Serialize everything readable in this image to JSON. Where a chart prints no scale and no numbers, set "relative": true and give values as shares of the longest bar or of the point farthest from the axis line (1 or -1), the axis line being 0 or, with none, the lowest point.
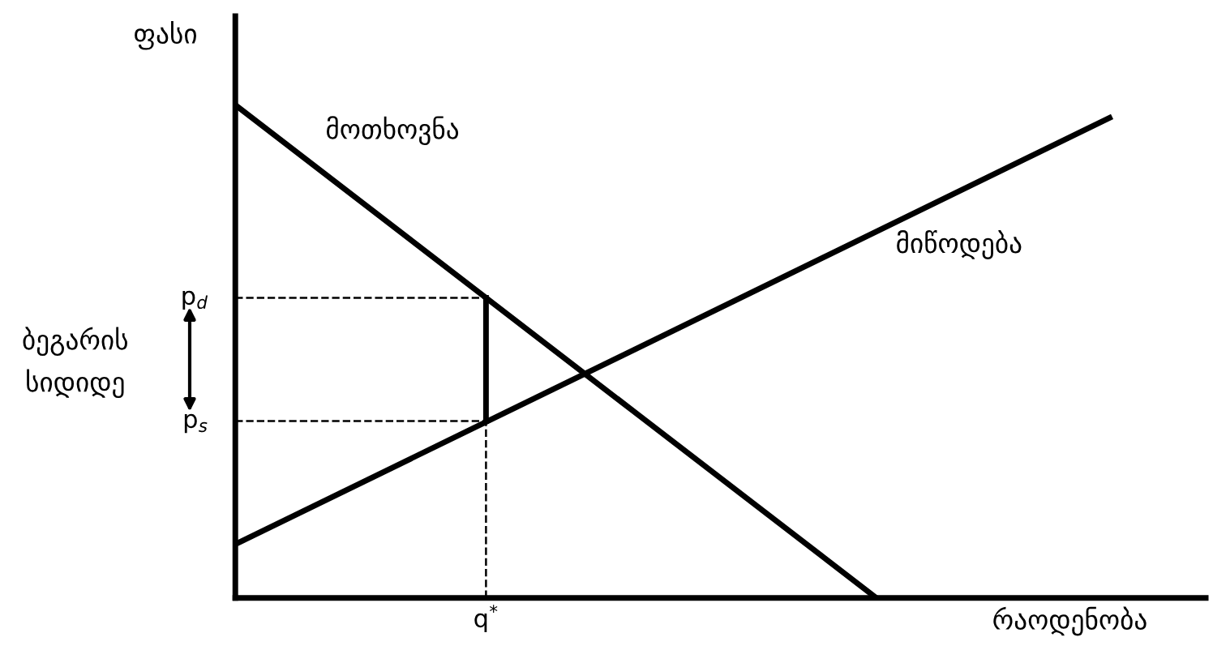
{
  "chart_data": {
    "type": "line",
    "relative": true,
    "xlabel": "რაოდენობა",
    "ylabel": "ფასი",
    "categories": [
      null,
      null,
      null,
      null,
      null,
      null,
      null,
      null,
      null,
      null,
      null,
      null,
      null,
      null,
      null,
      null,
      null,
      null,
      null,
      null,
      null,
      null,
      null,
      null,
      null,
      null,
      null,
      null,
      null,
      null,
      null,
      null,
      null,
      null,
      null,
      null,
      null,
      null,
      null,
      null,
      null,
      null,
      null,
      null,
      null,
      null
    ],
    "series": [
      {
        "name": "მოთხოვნა",
        "color": "#000000",
        "values": [
          1,
          null,
          null,
          null,
          null,
          null,
          null,
          null,
          null,
          null,
          null,
          null,
          null,
          null,
          null,
          null,
          null,
          null,
          null,
          null,
          null,
          null,
          null,
          null,
          null,
          null,
          null,
          null,
          null,
          null,
          null,
          null,
          null,
          0,
          null,
          null,
          null,
          null,
          null,
          null,
          null,
          null,
          null,
          null,
          null,
          null
        ]
      },
      {
        "name": "მიწოდება",
        "color": "#000000",
        "values": [
          0.109,
          null,
          null,
          null,
          null,
          null,
          null,
          null,
          null,
          null,
          null,
          null,
          null,
          null,
          null,
          null,
          null,
          null,
          null,
          null,
          null,
          null,
          null,
          null,
          null,
          null,
          null,
          null,
          null,
          null,
          null,
          null,
          null,
          null,
          null,
          null,
          null,
          null,
          null,
          null,
          null,
          null,
          null,
          null,
          null,
          0.974
        ]
      }
    ],
    "ref_lines": [
      {
        "axis": "y",
        "value": 0.609,
        "label": "p$_{d}$",
        "line_style": "dashed"
      },
      {
        "axis": "y",
        "value": 0.359,
        "label": "p$_{s}$",
        "line_style": "dashed"
      }
    ],
    "annotations": [
      "ბეგარის\nსიდიდე",
      "q$^{*}$"
    ],
    "legend": false,
    "line_style": "solid",
    "marker": "none"
  }
}
